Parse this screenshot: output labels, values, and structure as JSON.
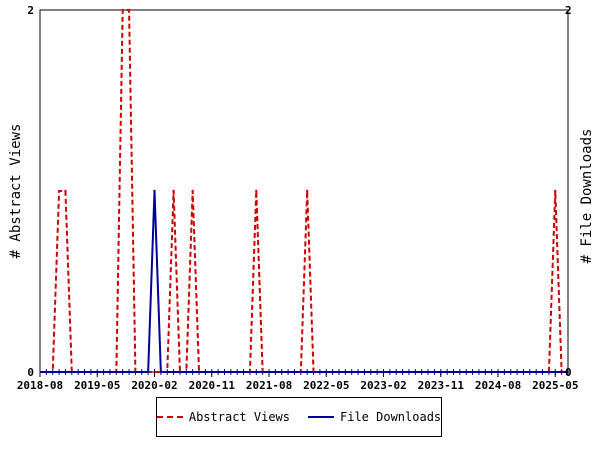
{
  "chart_data": {
    "type": "line",
    "title": "",
    "ylabel_left": "# Abstract Views",
    "ylabel_right": "# File Downloads",
    "xlabel": "",
    "x_tick_labels": [
      "2018-08",
      "2019-05",
      "2020-02",
      "2020-11",
      "2021-08",
      "2022-05",
      "2023-02",
      "2023-11",
      "2024-08",
      "2025-05"
    ],
    "x_range": [
      "2018-08",
      "2025-07"
    ],
    "ylim_left": [
      0,
      2
    ],
    "ylim_right": [
      0,
      2
    ],
    "y_ticks_left": [
      "0",
      "2"
    ],
    "y_ticks_right": [
      "0",
      "2"
    ],
    "grid": false,
    "legend_position": "bottom",
    "series": [
      {
        "name": "Abstract Views",
        "color": "#cc0000",
        "style": "dashed",
        "axis": "left",
        "points": [
          [
            "2018-11",
            1
          ],
          [
            "2018-12",
            1
          ],
          [
            "2019-09",
            2
          ],
          [
            "2019-10",
            2
          ],
          [
            "2020-05",
            1
          ],
          [
            "2020-08",
            1
          ],
          [
            "2021-06",
            1
          ],
          [
            "2022-02",
            1
          ],
          [
            "2025-05",
            1
          ]
        ]
      },
      {
        "name": "File Downloads",
        "color": "#000099",
        "style": "solid",
        "axis": "right",
        "points": [
          [
            "2020-02",
            1
          ]
        ]
      }
    ]
  }
}
